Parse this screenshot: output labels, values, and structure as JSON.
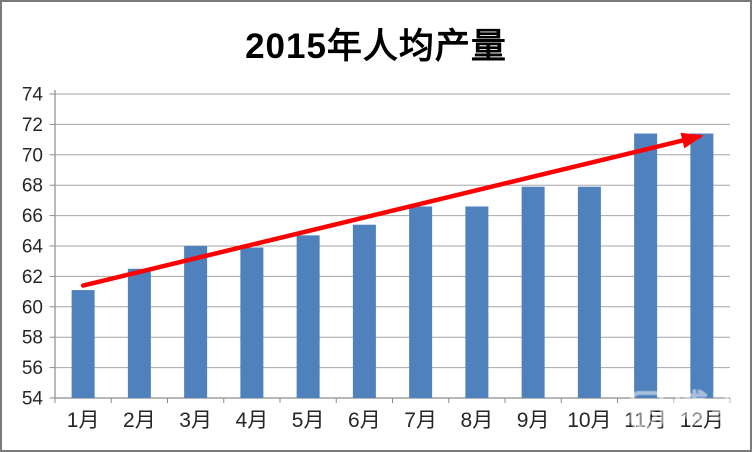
{
  "window": {
    "background": "#ffffff",
    "border_color": "#7a7a7a"
  },
  "chart_data": {
    "type": "bar",
    "title": "2015年人均产量",
    "categories": [
      "1月",
      "2月",
      "3月",
      "4月",
      "5月",
      "6月",
      "7月",
      "8月",
      "9月",
      "10月",
      "11月",
      "12月"
    ],
    "values": [
      61.1,
      62.5,
      64.0,
      63.9,
      64.7,
      65.4,
      66.6,
      66.6,
      67.9,
      67.9,
      71.4,
      71.4
    ],
    "xlabel": "",
    "ylabel": "",
    "ylim": [
      54,
      74
    ],
    "ytick_step": 2,
    "yticks": [
      54,
      56,
      58,
      60,
      62,
      64,
      66,
      68,
      70,
      72,
      74
    ],
    "grid": true,
    "legend": false,
    "bar_color": "#4F81BD",
    "gridline_color": "#A6A6A6",
    "axis_color": "#8C8C8C",
    "label_color": "#262626",
    "trend_arrow": {
      "color": "#FE0000",
      "start_category": "1月",
      "start_value": 61.4,
      "end_category": "12月",
      "end_value": 71.2
    }
  },
  "watermark": {
    "icon": "|5",
    "text": "博聿",
    "url": "www.bigee.com"
  }
}
